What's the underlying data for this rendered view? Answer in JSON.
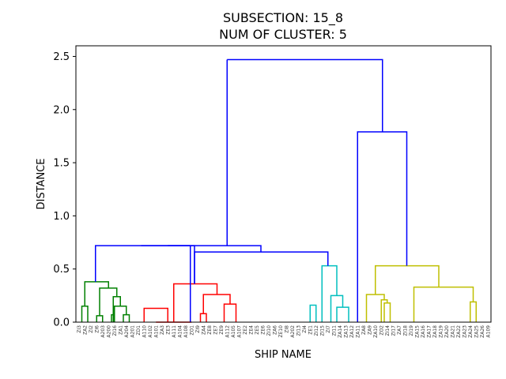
{
  "chart_data": {
    "type": "dendrogram",
    "title_line1": "SUBSECTION: 15_8",
    "title_line2": "NUM OF CLUSTER: 5",
    "xlabel": "SHIP NAME",
    "ylabel": "DISTANCE",
    "ylim": [
      0,
      2.6
    ],
    "yticks": [
      0.0,
      0.5,
      1.0,
      1.5,
      2.0,
      2.5
    ],
    "ytick_labels": [
      "0.0",
      "0.5",
      "1.0",
      "1.5",
      "2.0",
      "2.5"
    ],
    "leaf_count": 70,
    "leaf_labels": [
      "ZI3",
      "ZA2",
      "ZI2",
      "ZI6",
      "A203",
      "A200",
      "ZI16",
      "ZA1",
      "A204",
      "A201",
      "ZD1",
      "A110",
      "A102",
      "A101",
      "ZA3",
      "ZE3",
      "A111",
      "A104",
      "A108",
      "ZO1",
      "ZI9",
      "ZA4",
      "ZE8",
      "ZE7",
      "ZE9",
      "A112",
      "A105",
      "A107",
      "ZE2",
      "ZE4",
      "ZE5",
      "ZE6",
      "ZI10",
      "ZA6",
      "ZE10",
      "ZI8",
      "A202",
      "ZI13",
      "ZI4",
      "ZE1",
      "ZI12",
      "ZI15",
      "ZI7",
      "ZI11",
      "ZA14",
      "ZA13",
      "ZA12",
      "ZA11",
      "ZA8",
      "ZA9",
      "ZA10",
      "ZO2",
      "ZI14",
      "ZI17",
      "ZA7",
      "ZI18",
      "ZI19",
      "ZA15",
      "ZA16",
      "ZA17",
      "ZA18",
      "ZA19",
      "ZA20",
      "ZA21",
      "ZA22",
      "ZA23",
      "ZA24",
      "ZA25",
      "ZA26",
      "A109"
    ],
    "colors": {
      "cluster_1": "#008000",
      "cluster_2": "#ff0000",
      "cluster_3": "#00bfbf",
      "cluster_4": "#0000ff",
      "cluster_5": "#bfbf00",
      "above_threshold": "#0000ff"
    },
    "links": [
      {
        "color": "#008000",
        "left": [
          0.5,
          0
        ],
        "right": [
          1.5,
          0
        ],
        "height": 0.15
      },
      {
        "color": "#008000",
        "left": [
          3.0,
          0
        ],
        "right": [
          4.0,
          0
        ],
        "height": 0.06
      },
      {
        "color": "#008000",
        "left": [
          5.5,
          0
        ],
        "right": [
          6.0,
          0
        ],
        "height": 0.07
      },
      {
        "color": "#008000",
        "left": [
          7.5,
          0
        ],
        "right": [
          8.5,
          0
        ],
        "height": 0.07
      },
      {
        "color": "#008000",
        "left": [
          6.0,
          0.07
        ],
        "right": [
          8.0,
          0.07
        ],
        "height": 0.15
      },
      {
        "color": "#008000",
        "left": [
          5.8,
          0
        ],
        "right": [
          7.0,
          0.15
        ],
        "height": 0.24
      },
      {
        "color": "#008000",
        "left": [
          3.5,
          0.06
        ],
        "right": [
          6.4,
          0.24
        ],
        "height": 0.32
      },
      {
        "color": "#008000",
        "left": [
          1.0,
          0.15
        ],
        "right": [
          5.0,
          0.32
        ],
        "height": 0.38
      },
      {
        "color": "#ff0000",
        "left": [
          11.0,
          0
        ],
        "right": [
          15.0,
          0
        ],
        "height": 0.13
      },
      {
        "color": "#ff0000",
        "left": [
          13.0,
          0.0
        ],
        "right": [
          19.0,
          0.0
        ],
        "height": 0.0
      },
      {
        "color": "#ff0000",
        "left": [
          20.5,
          0
        ],
        "right": [
          21.5,
          0
        ],
        "height": 0.08
      },
      {
        "color": "#ff0000",
        "left": [
          24.5,
          0
        ],
        "right": [
          26.5,
          0
        ],
        "height": 0.17
      },
      {
        "color": "#ff0000",
        "left": [
          21.0,
          0.08
        ],
        "right": [
          25.5,
          0.17
        ],
        "height": 0.26
      },
      {
        "color": "#ff0000",
        "left": [
          16.0,
          0.0
        ],
        "right": [
          23.3,
          0.26
        ],
        "height": 0.36
      },
      {
        "color": "#00bfbf",
        "left": [
          39.0,
          0
        ],
        "right": [
          40.0,
          0
        ],
        "height": 0.16
      },
      {
        "color": "#00bfbf",
        "left": [
          43.5,
          0
        ],
        "right": [
          45.5,
          0
        ],
        "height": 0.14
      },
      {
        "color": "#00bfbf",
        "left": [
          42.5,
          0
        ],
        "right": [
          44.5,
          0.14
        ],
        "height": 0.25
      },
      {
        "color": "#00bfbf",
        "left": [
          41.0,
          0.0
        ],
        "right": [
          43.5,
          0.25
        ],
        "height": 0.53
      },
      {
        "color": "#bfbf00",
        "left": [
          51.5,
          0
        ],
        "right": [
          52.5,
          0
        ],
        "height": 0.18
      },
      {
        "color": "#bfbf00",
        "left": [
          51.0,
          0
        ],
        "right": [
          52.0,
          0.18
        ],
        "height": 0.21
      },
      {
        "color": "#bfbf00",
        "left": [
          48.5,
          0
        ],
        "right": [
          51.5,
          0.21
        ],
        "height": 0.26
      },
      {
        "color": "#bfbf00",
        "left": [
          66.0,
          0
        ],
        "right": [
          67.0,
          0
        ],
        "height": 0.19
      },
      {
        "color": "#bfbf00",
        "left": [
          56.5,
          0.0
        ],
        "right": [
          66.5,
          0.19
        ],
        "height": 0.33
      },
      {
        "color": "#bfbf00",
        "left": [
          50.0,
          0.26
        ],
        "right": [
          60.7,
          0.33
        ],
        "height": 0.53
      },
      {
        "color": "#0000ff",
        "left": [
          2.8,
          0.38
        ],
        "right": [
          18.8,
          0.0
        ],
        "height": 0.72
      },
      {
        "color": "#0000ff",
        "left": [
          10.5,
          0.72
        ],
        "right": [
          19.5,
          0.36
        ],
        "height": 0.72
      },
      {
        "color": "#0000ff",
        "left": [
          19.5,
          0.36
        ],
        "right": [
          42.0,
          0.53
        ],
        "height": 0.66
      },
      {
        "color": "#0000ff",
        "left": [
          15.0,
          0.72
        ],
        "right": [
          30.7,
          0.66
        ],
        "height": 0.72
      },
      {
        "color": "#0000ff",
        "left": [
          25.0,
          0.72
        ],
        "right": [
          25.0,
          0.72
        ],
        "height": 2.47
      },
      {
        "color": "#0000ff",
        "left": [
          47.0,
          0.0
        ],
        "right": [
          55.3,
          0.53
        ],
        "height": 1.79
      },
      {
        "color": "#0000ff",
        "left": [
          25.0,
          2.47
        ],
        "right": [
          51.2,
          1.79
        ],
        "height": 2.47
      }
    ]
  }
}
